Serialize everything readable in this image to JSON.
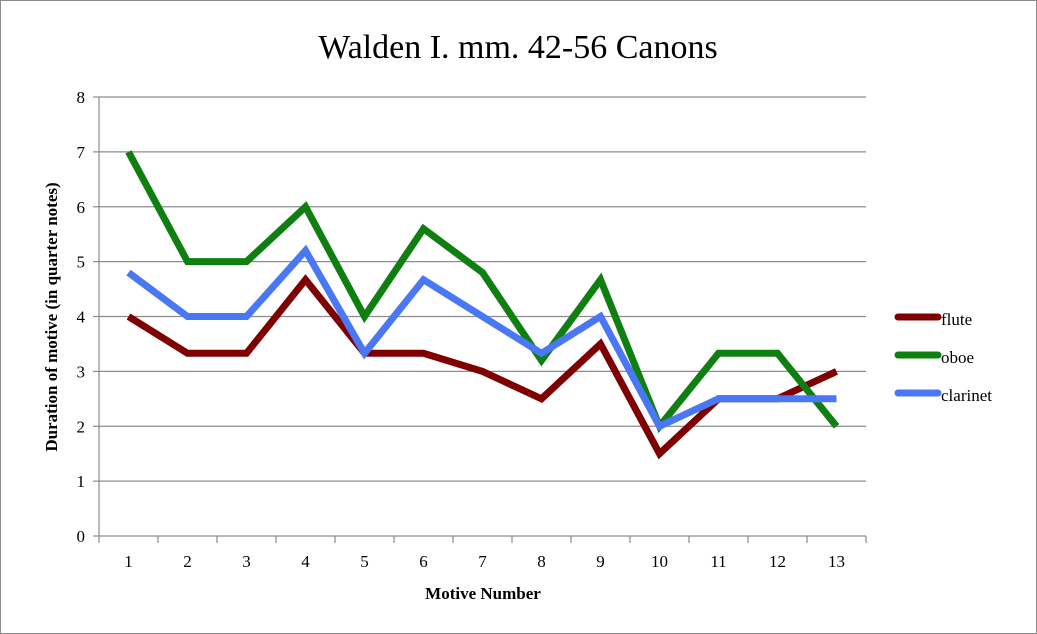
{
  "chart_data": {
    "type": "line",
    "title": "Walden I. mm. 42-56 Canons",
    "xlabel": "Motive Number",
    "ylabel": "Duration of motive (in quarter notes)",
    "x": [
      1,
      2,
      3,
      4,
      5,
      6,
      7,
      8,
      9,
      10,
      11,
      12,
      13
    ],
    "ylim": [
      0,
      8
    ],
    "yticks": [
      0,
      1,
      2,
      3,
      4,
      5,
      6,
      7,
      8
    ],
    "grid": true,
    "legend_position": "right",
    "series": [
      {
        "name": "flute",
        "color": "#7f0000",
        "values": [
          4,
          3.33,
          3.33,
          4.67,
          3.33,
          3.33,
          3,
          2.5,
          3.5,
          1.5,
          2.5,
          2.5,
          3
        ]
      },
      {
        "name": "oboe",
        "color": "#0f7f12",
        "values": [
          7,
          5,
          5,
          6,
          4,
          5.6,
          4.8,
          3.2,
          4.67,
          2,
          3.33,
          3.33,
          2
        ]
      },
      {
        "name": "clarinet",
        "color": "#4a78f5",
        "values": [
          4.8,
          4,
          4,
          5.2,
          3.33,
          4.67,
          4,
          3.33,
          4,
          2,
          2.5,
          2.5,
          2.5
        ]
      }
    ]
  }
}
